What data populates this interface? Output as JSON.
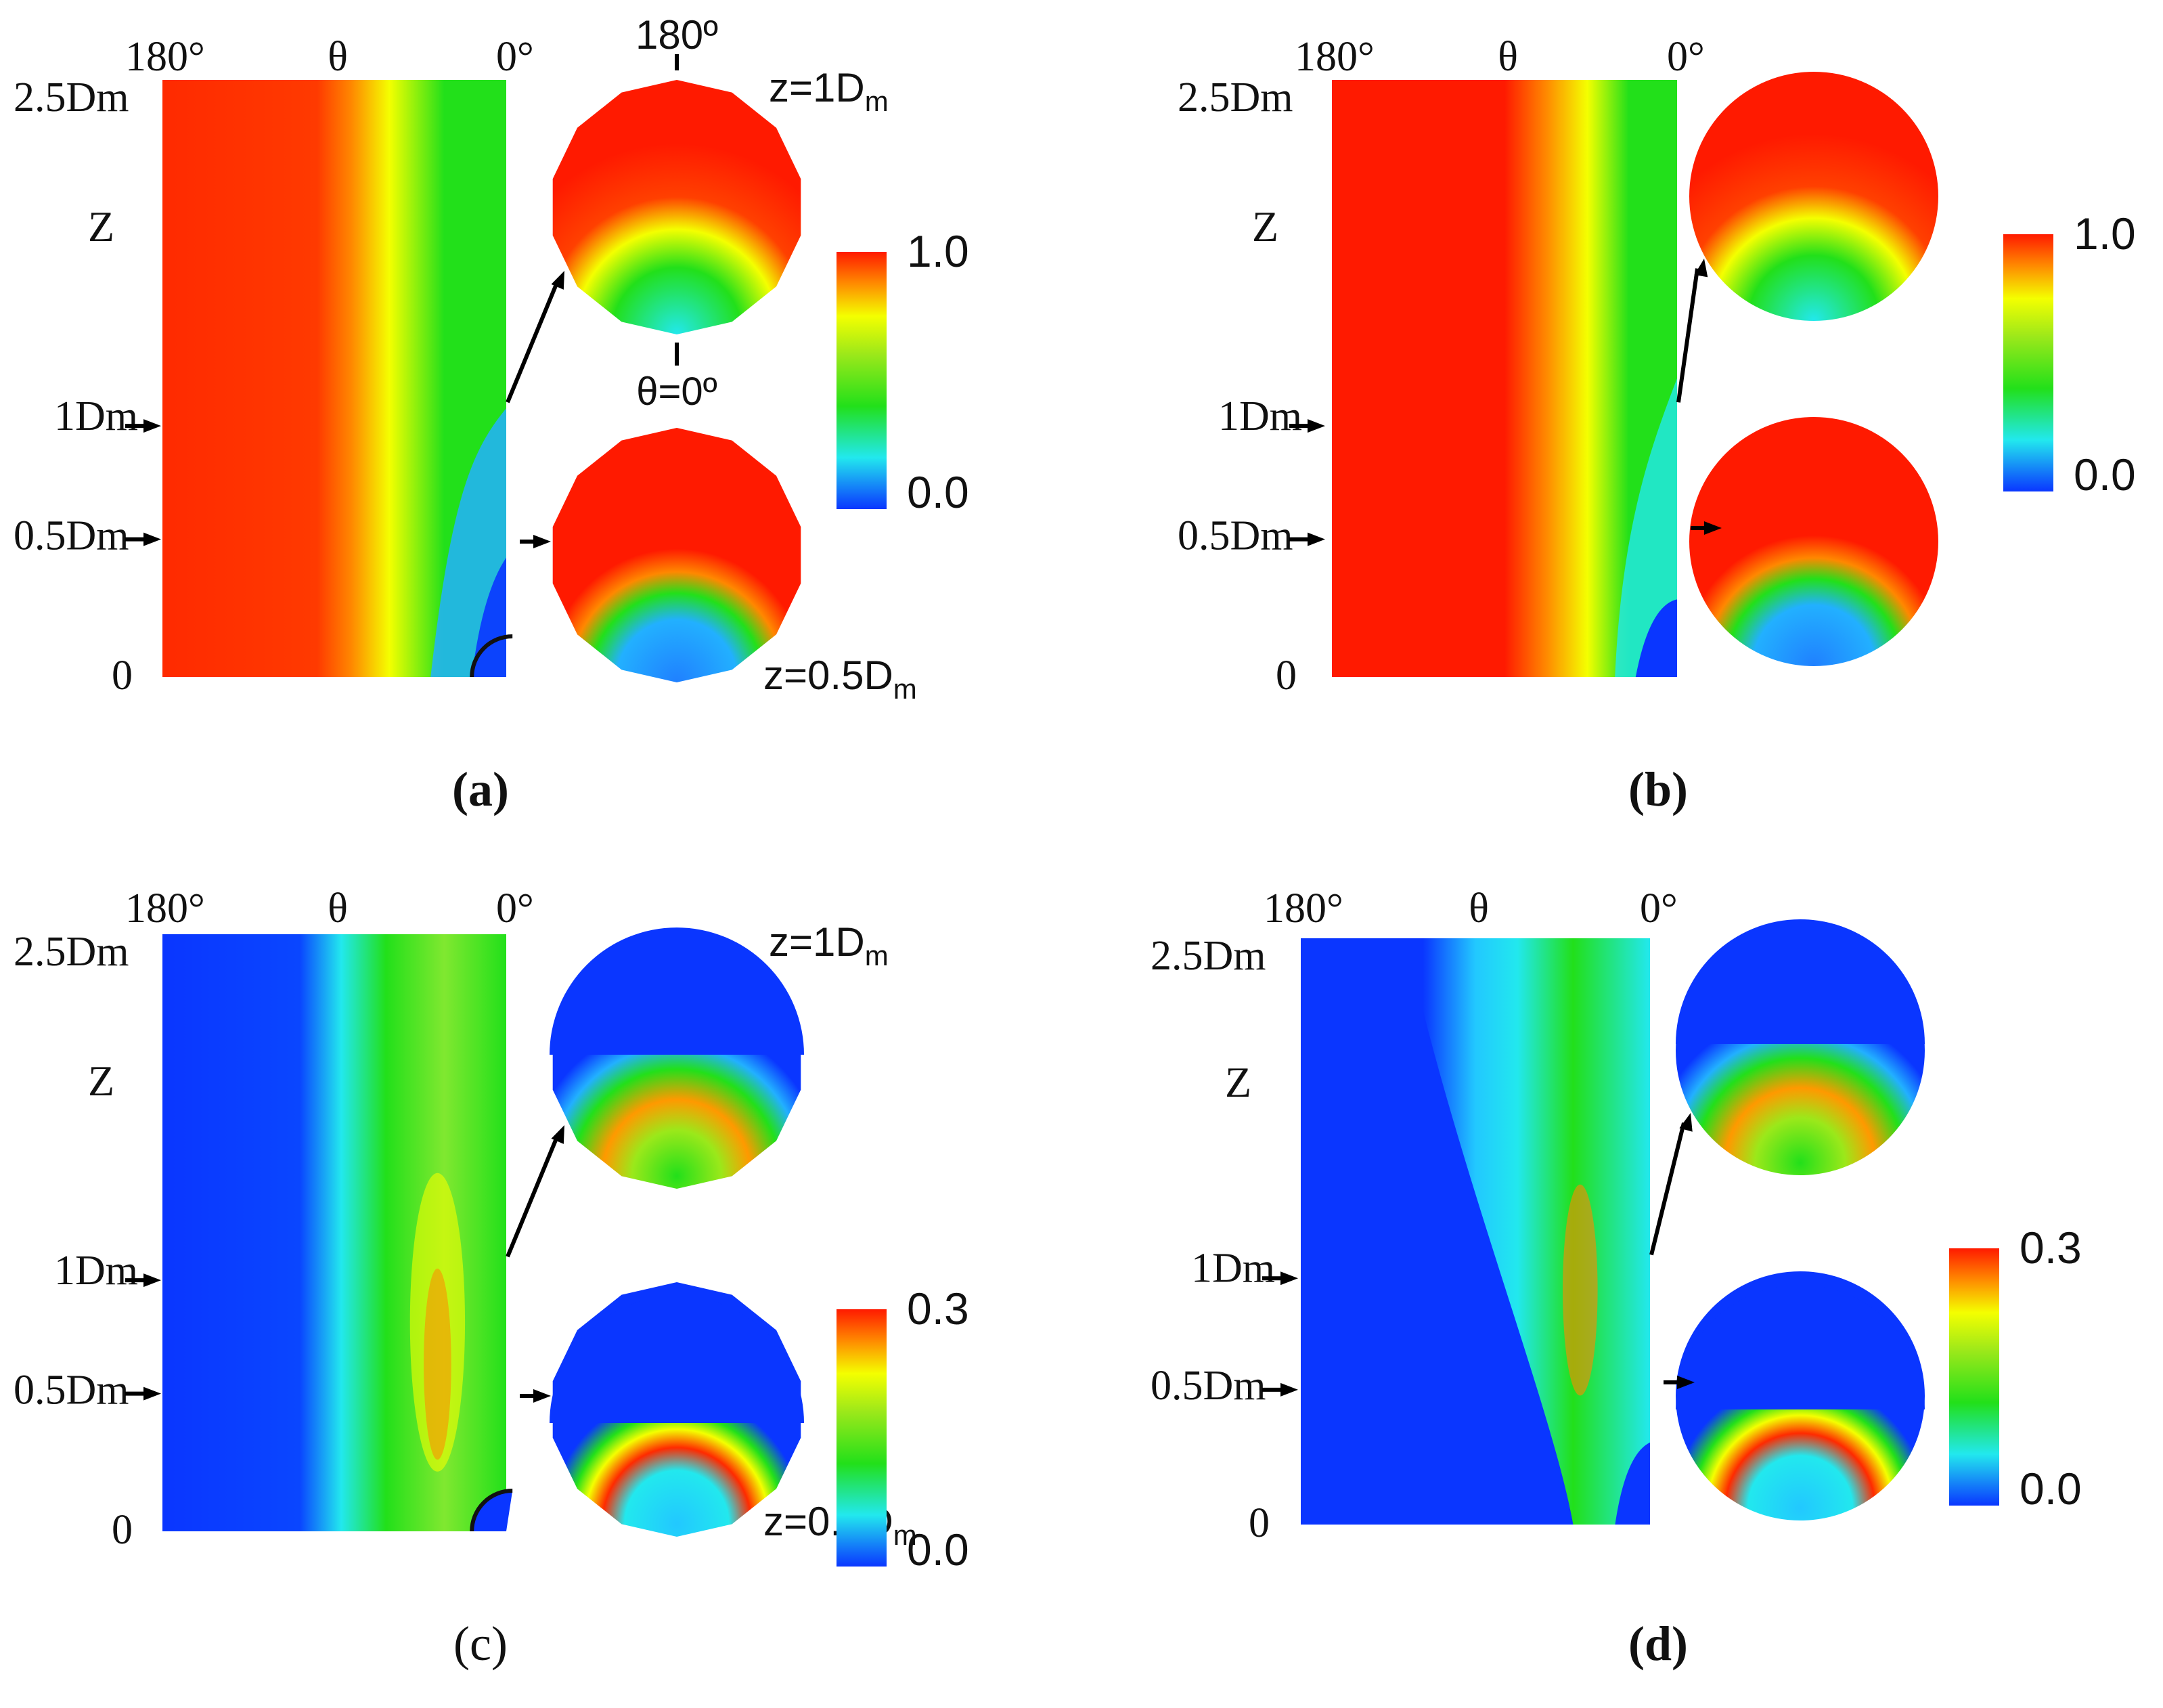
{
  "figure": {
    "colors": {
      "red": "#ff1a00",
      "orange": "#ff8800",
      "yellow": "#f4ff00",
      "green": "#22e01a",
      "cyan": "#22e8ee",
      "blue": "#0a36ff"
    },
    "panels": [
      {
        "id": "a",
        "caption": "(a)",
        "caption_bold": true,
        "style": "polygon-labeled",
        "theta_labels": [
          "180°",
          "θ",
          "0°"
        ],
        "z_axis_label": "Z",
        "z_ticks": [
          "2.5Dm",
          "1Dm",
          "0.5Dm",
          "0"
        ],
        "field": "volume-fraction",
        "colorbar": {
          "max": "1.0",
          "min": "0.0"
        },
        "cross_section_labels": {
          "top_angle": "180º",
          "bottom_angle": "θ=0º",
          "upper_z": "z=1D",
          "lower_z": "z=0.5D",
          "subscript": "m"
        }
      },
      {
        "id": "b",
        "caption": "(b)",
        "caption_bold": true,
        "style": "circle",
        "theta_labels": [
          "180°",
          "θ",
          "0°"
        ],
        "z_axis_label": "Z",
        "z_ticks": [
          "2.5Dm",
          "1Dm",
          "0.5Dm",
          "0"
        ],
        "field": "volume-fraction",
        "colorbar": {
          "max": "1.0",
          "min": "0.0"
        }
      },
      {
        "id": "c",
        "caption": "(c)",
        "caption_bold": false,
        "style": "polygon-labeled",
        "theta_labels": [
          "180°",
          "θ",
          "0°"
        ],
        "z_axis_label": "Z",
        "z_ticks": [
          "2.5Dm",
          "1Dm",
          "0.5Dm",
          "0"
        ],
        "field": "secondary",
        "colorbar": {
          "max": "0.3",
          "min": "0.0"
        },
        "cross_section_labels": {
          "upper_z": "z=1D",
          "lower_z": "z=0.5D",
          "subscript": "m"
        }
      },
      {
        "id": "d",
        "caption": "(d)",
        "caption_bold": true,
        "style": "circle",
        "theta_labels": [
          "180°",
          "θ",
          "0°"
        ],
        "z_axis_label": "Z",
        "z_ticks": [
          "2.5Dm",
          "1Dm",
          "0.5Dm",
          "0"
        ],
        "field": "secondary",
        "colorbar": {
          "max": "0.3",
          "min": "0.0"
        }
      }
    ]
  }
}
